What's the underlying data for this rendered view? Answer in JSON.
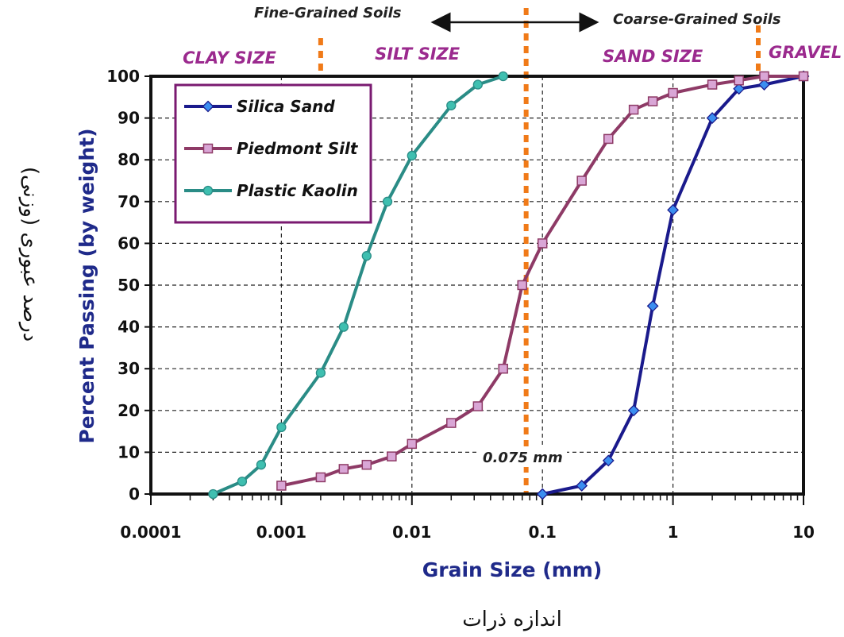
{
  "chart_data": {
    "type": "line",
    "x_scale": "log",
    "xlim": [
      0.0001,
      10
    ],
    "ylim": [
      0,
      100
    ],
    "grid": true,
    "xlabel": "Grain Size (mm)",
    "ylabel": "Percent Passing (by weight)",
    "xlabel_fa": "اندازه ذرات",
    "ylabel_fa": "درصد عبوری (وزنی)",
    "x_ticks": [
      {
        "value": 0.0001,
        "label": "0.0001"
      },
      {
        "value": 0.001,
        "label": "0.001"
      },
      {
        "value": 0.01,
        "label": "0.01"
      },
      {
        "value": 0.1,
        "label": "0.1"
      },
      {
        "value": 1,
        "label": "1"
      },
      {
        "value": 10,
        "label": "10"
      }
    ],
    "y_ticks": [
      0,
      10,
      20,
      30,
      40,
      50,
      60,
      70,
      80,
      90,
      100
    ],
    "legend_position": "top-left",
    "series": [
      {
        "name": "Silica Sand",
        "color": "#1a1a8c",
        "marker": "diamond",
        "marker_color": "#3b8ef0",
        "x": [
          0.1,
          0.2,
          0.32,
          0.5,
          0.7,
          1,
          2,
          3.2,
          5,
          10
        ],
        "y": [
          0,
          2,
          8,
          20,
          45,
          68,
          90,
          97,
          98,
          100
        ]
      },
      {
        "name": "Piedmont Silt",
        "color": "#8e3a66",
        "marker": "square",
        "marker_color": "#d9a6d6",
        "x": [
          0.001,
          0.002,
          0.003,
          0.0045,
          0.007,
          0.01,
          0.02,
          0.032,
          0.05,
          0.07,
          0.1,
          0.2,
          0.32,
          0.5,
          0.7,
          1,
          2,
          3.2,
          5,
          10
        ],
        "y": [
          2,
          4,
          6,
          7,
          9,
          12,
          17,
          21,
          30,
          50,
          60,
          75,
          85,
          92,
          94,
          96,
          98,
          99,
          100,
          100
        ]
      },
      {
        "name": "Plastic Kaolin",
        "color": "#2a8c86",
        "marker": "circle",
        "marker_color": "#3fbfb0",
        "x": [
          0.0003,
          0.0005,
          0.0007,
          0.001,
          0.002,
          0.003,
          0.0045,
          0.0065,
          0.01,
          0.02,
          0.032,
          0.05
        ],
        "y": [
          0,
          3,
          7,
          16,
          29,
          40,
          57,
          70,
          81,
          93,
          98,
          100
        ]
      }
    ],
    "boundaries": [
      {
        "x": 0.002,
        "color": "#f07a18"
      },
      {
        "x": 0.075,
        "color": "#f07a18"
      },
      {
        "x": 4.5,
        "color": "#f07a18"
      }
    ],
    "zones": [
      {
        "label": "CLAY SIZE",
        "x": 0.0004
      },
      {
        "label": "SILT SIZE",
        "x": 0.011
      },
      {
        "label": "SAND SIZE",
        "x": 0.7
      },
      {
        "label": "GRAVEL",
        "x": 8
      }
    ],
    "top_labels": {
      "fine": "Fine-Grained Soils",
      "coarse": "Coarse-Grained Soils"
    },
    "annotation": "0.075 mm"
  }
}
